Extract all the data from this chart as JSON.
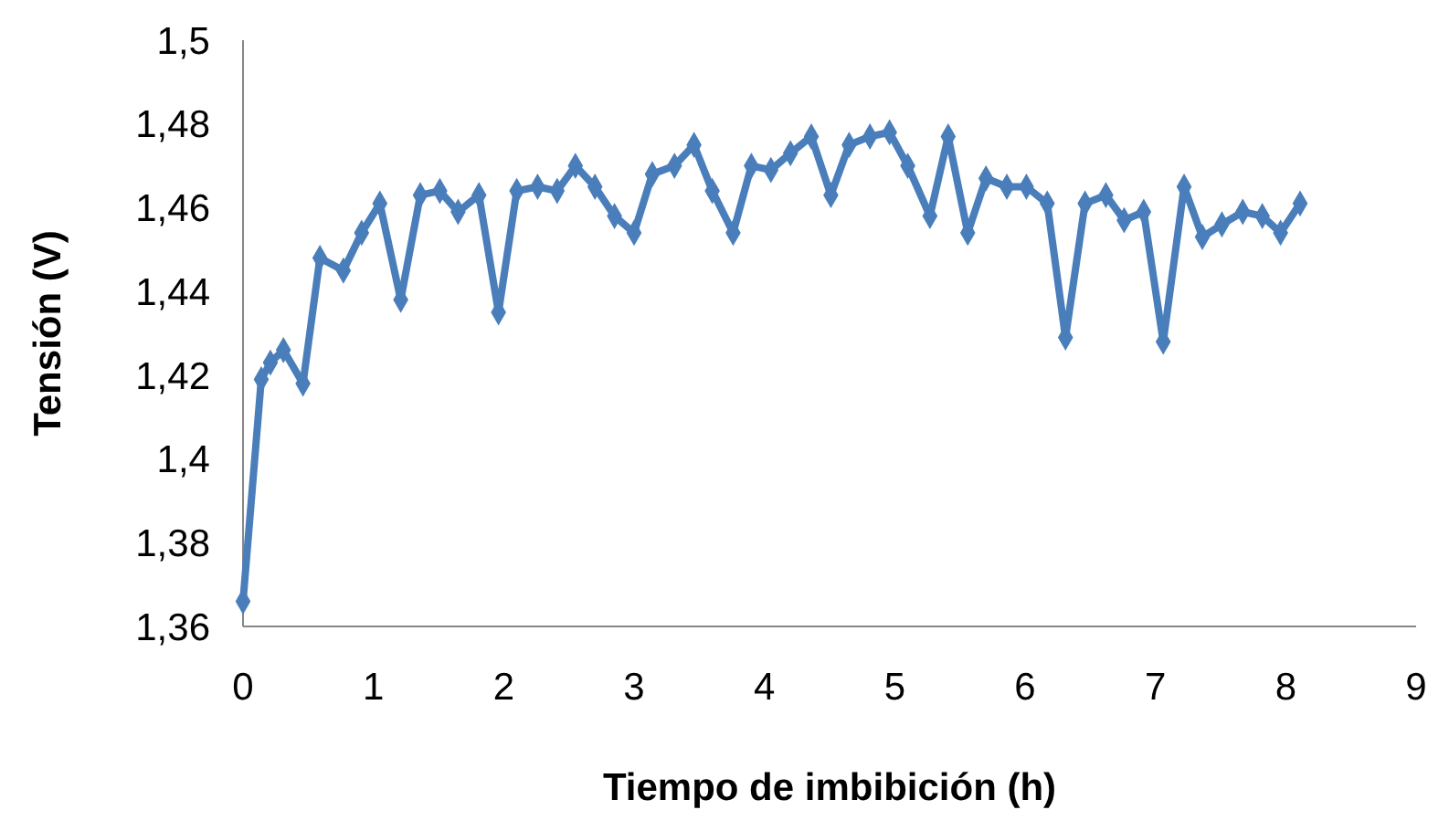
{
  "chart_data": {
    "type": "line",
    "xlabel": "Tiempo de imbibición (h)",
    "ylabel": "Tensión (V)",
    "xlim": [
      0,
      9
    ],
    "xticks": [
      0,
      1,
      2,
      3,
      4,
      5,
      6,
      7,
      8,
      9
    ],
    "ylim": [
      1.36,
      1.5
    ],
    "yticks": [
      {
        "value": 1.36,
        "label": "1,36"
      },
      {
        "value": 1.38,
        "label": "1,38"
      },
      {
        "value": 1.4,
        "label": "1,4"
      },
      {
        "value": 1.42,
        "label": "1,42"
      },
      {
        "value": 1.44,
        "label": "1,44"
      },
      {
        "value": 1.46,
        "label": "1,46"
      },
      {
        "value": 1.48,
        "label": "1,48"
      },
      {
        "value": 1.5,
        "label": "1,5"
      }
    ],
    "grid": false,
    "marker": "diamond",
    "line_style": "solid",
    "series": [
      {
        "color": "#4a7ebb",
        "x": [
          0,
          0.14,
          0.21,
          0.31,
          0.46,
          0.59,
          0.77,
          0.91,
          1.05,
          1.21,
          1.36,
          1.51,
          1.65,
          1.81,
          1.96,
          2.1,
          2.26,
          2.41,
          2.55,
          2.7,
          2.85,
          3.0,
          3.14,
          3.31,
          3.46,
          3.6,
          3.76,
          3.9,
          4.05,
          4.2,
          4.36,
          4.51,
          4.65,
          4.81,
          4.96,
          5.1,
          5.27,
          5.41,
          5.56,
          5.7,
          5.86,
          6.01,
          6.17,
          6.31,
          6.46,
          6.62,
          6.76,
          6.91,
          7.06,
          7.22,
          7.36,
          7.51,
          7.67,
          7.82,
          7.96,
          8.11
        ],
        "values": [
          1.366,
          1.419,
          1.423,
          1.426,
          1.418,
          1.448,
          1.445,
          1.454,
          1.461,
          1.438,
          1.463,
          1.464,
          1.459,
          1.463,
          1.435,
          1.464,
          1.465,
          1.464,
          1.47,
          1.465,
          1.458,
          1.454,
          1.468,
          1.47,
          1.475,
          1.464,
          1.454,
          1.47,
          1.469,
          1.473,
          1.477,
          1.463,
          1.475,
          1.477,
          1.478,
          1.47,
          1.458,
          1.477,
          1.454,
          1.467,
          1.465,
          1.465,
          1.461,
          1.429,
          1.461,
          1.463,
          1.457,
          1.459,
          1.428,
          1.465,
          1.453,
          1.456,
          1.459,
          1.458,
          1.454,
          1.461
        ]
      }
    ]
  }
}
